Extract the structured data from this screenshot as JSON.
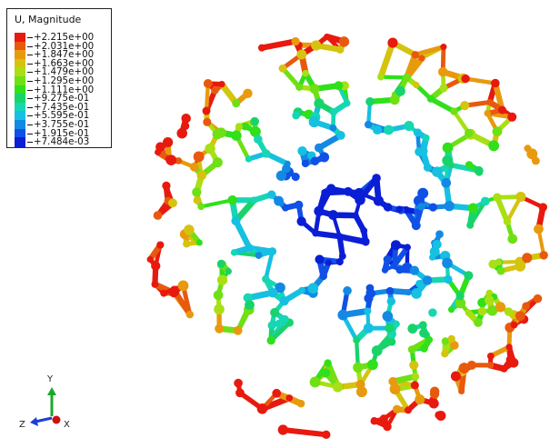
{
  "legend": {
    "title": "U, Magnitude",
    "levels": [
      {
        "label": "+2.215e+00",
        "color": "#e8190e"
      },
      {
        "label": "+2.031e+00",
        "color": "#e8590e"
      },
      {
        "label": "+1.847e+00",
        "color": "#e89a0e"
      },
      {
        "label": "+1.663e+00",
        "color": "#d4c410"
      },
      {
        "label": "+1.479e+00",
        "color": "#a9df14"
      },
      {
        "label": "+1.295e+00",
        "color": "#6ee014"
      },
      {
        "label": "+1.111e+00",
        "color": "#2fe01a"
      },
      {
        "label": "+9.275e-01",
        "color": "#18d36a"
      },
      {
        "label": "+7.435e-01",
        "color": "#16d6b4"
      },
      {
        "label": "+5.595e-01",
        "color": "#16c0e0"
      },
      {
        "label": "+3.755e-01",
        "color": "#1489e4"
      },
      {
        "label": "+1.915e-01",
        "color": "#1050e6"
      },
      {
        "label": "+7.484e-03",
        "color": "#0a1ed6"
      }
    ]
  },
  "triad": {
    "y_label": "Y",
    "z_label": "Z",
    "x_label": "X",
    "colors": {
      "y": "#1aa82a",
      "z": "#1b3fd6",
      "x": "#d01010"
    }
  }
}
